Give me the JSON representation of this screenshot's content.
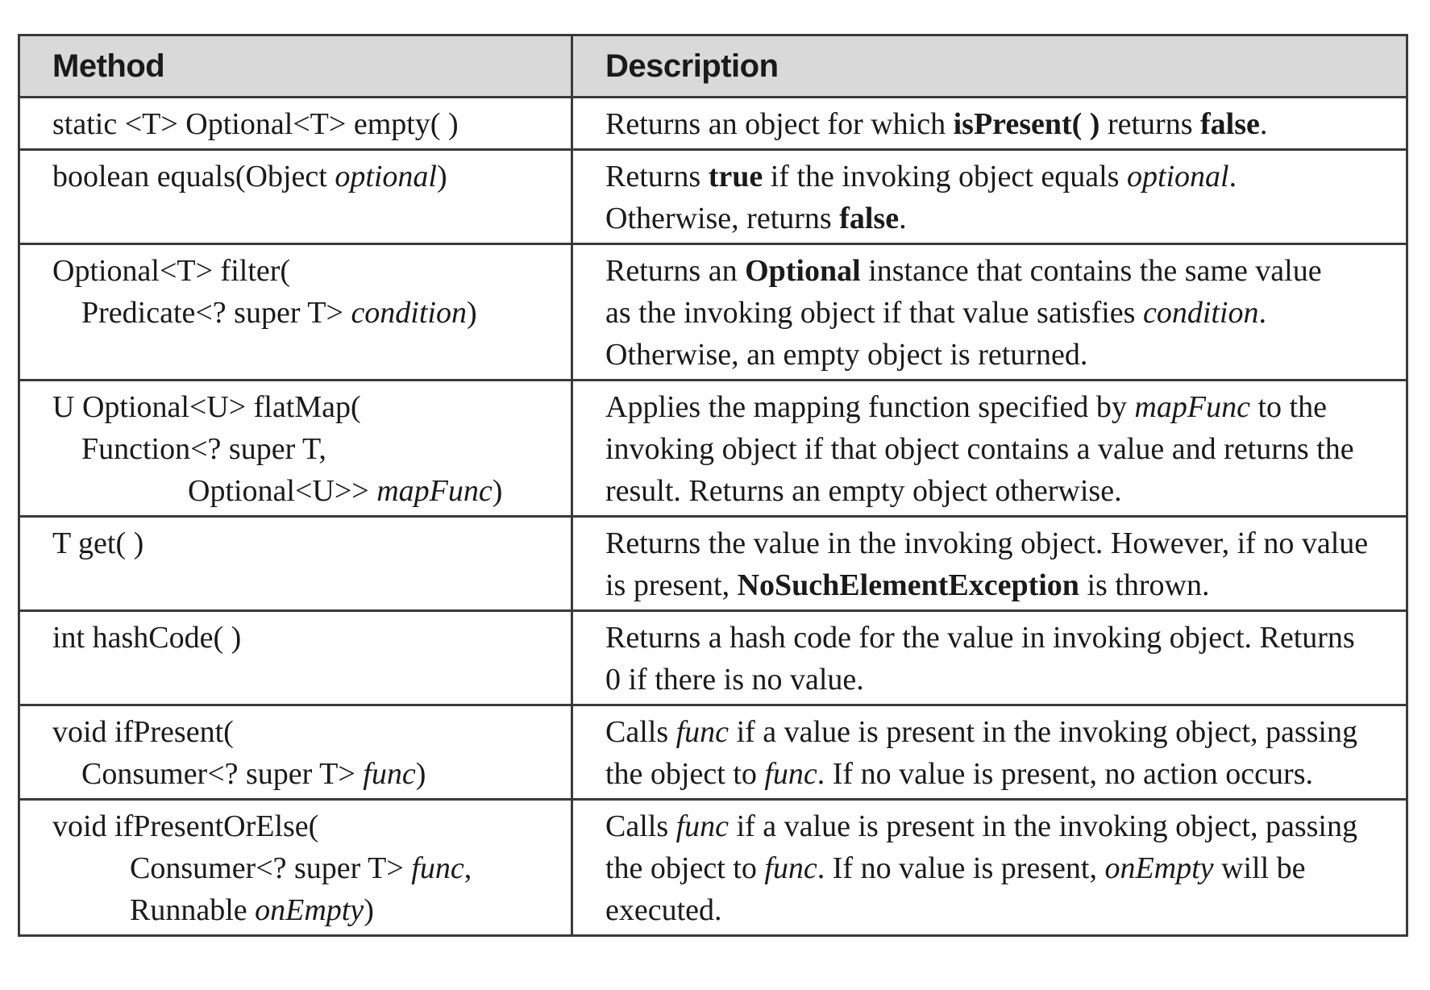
{
  "table": {
    "headers": [
      "Method",
      "Description"
    ],
    "rows": [
      {
        "method": [
          [
            {
              "t": "static <T> Optional<T> empty( )"
            }
          ]
        ],
        "description": [
          [
            {
              "t": "Returns an object for which "
            },
            {
              "t": "isPresent( )",
              "s": "b"
            },
            {
              "t": " returns "
            },
            {
              "t": "false",
              "s": "b"
            },
            {
              "t": "."
            }
          ]
        ]
      },
      {
        "method": [
          [
            {
              "t": "boolean equals(Object "
            },
            {
              "t": "optional",
              "s": "i"
            },
            {
              "t": ")"
            }
          ]
        ],
        "description": [
          [
            {
              "t": "Returns "
            },
            {
              "t": "true",
              "s": "b"
            },
            {
              "t": " if the invoking object equals "
            },
            {
              "t": "optional",
              "s": "i"
            },
            {
              "t": "."
            }
          ],
          [
            {
              "t": "Otherwise, returns "
            },
            {
              "t": "false",
              "s": "b"
            },
            {
              "t": "."
            }
          ]
        ]
      },
      {
        "method": [
          [
            {
              "t": "Optional<T> filter("
            }
          ],
          [
            {
              "t": "Predicate<? super T> "
            },
            {
              "t": "condition",
              "s": "i"
            },
            {
              "t": ")"
            }
          ]
        ],
        "method_indent": [
          0,
          1
        ],
        "description": [
          [
            {
              "t": "Returns an "
            },
            {
              "t": "Optional",
              "s": "b"
            },
            {
              "t": " instance that contains the same value"
            }
          ],
          [
            {
              "t": "as the invoking object if that value satisfies "
            },
            {
              "t": "condition",
              "s": "i"
            },
            {
              "t": "."
            }
          ],
          [
            {
              "t": "Otherwise, an empty object is returned."
            }
          ]
        ]
      },
      {
        "method": [
          [
            {
              "t": "U Optional<U> flatMap("
            }
          ],
          [
            {
              "t": "Function<? super T,"
            }
          ],
          [
            {
              "t": "Optional<U>> "
            },
            {
              "t": "mapFunc",
              "s": "i"
            },
            {
              "t": ")"
            }
          ]
        ],
        "method_indent": [
          0,
          1,
          3
        ],
        "description": [
          [
            {
              "t": "Applies the mapping function specified by "
            },
            {
              "t": "mapFunc",
              "s": "i"
            },
            {
              "t": " to the"
            }
          ],
          [
            {
              "t": "invoking object if that object contains a value and returns the"
            }
          ],
          [
            {
              "t": "result. Returns an empty object otherwise."
            }
          ]
        ]
      },
      {
        "method": [
          [
            {
              "t": "T get( )"
            }
          ]
        ],
        "description": [
          [
            {
              "t": "Returns the value in the invoking object. However, if no value"
            }
          ],
          [
            {
              "t": "is present, "
            },
            {
              "t": "NoSuchElementException",
              "s": "b"
            },
            {
              "t": " is thrown."
            }
          ]
        ]
      },
      {
        "method": [
          [
            {
              "t": "int hashCode( )"
            }
          ]
        ],
        "description": [
          [
            {
              "t": "Returns a hash code for the value in invoking object. Returns"
            }
          ],
          [
            {
              "t": "0 if there is no value."
            }
          ]
        ]
      },
      {
        "method": [
          [
            {
              "t": "void ifPresent("
            }
          ],
          [
            {
              "t": "Consumer<? super T> "
            },
            {
              "t": "func",
              "s": "i"
            },
            {
              "t": ")"
            }
          ]
        ],
        "method_indent": [
          0,
          1
        ],
        "description": [
          [
            {
              "t": "Calls "
            },
            {
              "t": "func",
              "s": "i"
            },
            {
              "t": " if a value is present in the invoking object, passing"
            }
          ],
          [
            {
              "t": "the object to "
            },
            {
              "t": "func",
              "s": "i"
            },
            {
              "t": ". If no value is present, no action occurs."
            }
          ]
        ]
      },
      {
        "method": [
          [
            {
              "t": "void ifPresentOrElse("
            }
          ],
          [
            {
              "t": "Consumer<? super T> "
            },
            {
              "t": "func",
              "s": "i"
            },
            {
              "t": ","
            }
          ],
          [
            {
              "t": "Runnable "
            },
            {
              "t": "onEmpty",
              "s": "i"
            },
            {
              "t": ")"
            }
          ]
        ],
        "method_indent": [
          0,
          2,
          2
        ],
        "description": [
          [
            {
              "t": "Calls "
            },
            {
              "t": "func",
              "s": "i"
            },
            {
              "t": " if a value is present in the invoking object, passing"
            }
          ],
          [
            {
              "t": "the object to "
            },
            {
              "t": "func",
              "s": "i"
            },
            {
              "t": ". If no value is present, "
            },
            {
              "t": "onEmpty",
              "s": "i"
            },
            {
              "t": " will be"
            }
          ],
          [
            {
              "t": "executed."
            }
          ]
        ]
      }
    ]
  }
}
